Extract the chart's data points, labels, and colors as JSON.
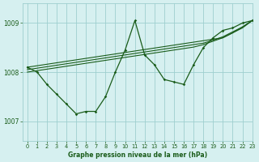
{
  "title": "Graphe pression niveau de la mer (hPa)",
  "bg_color": "#d6f0f0",
  "grid_color": "#9ecfcf",
  "line_color": "#1a5c1a",
  "xlim": [
    -0.5,
    23
  ],
  "ylim": [
    1006.6,
    1009.4
  ],
  "yticks": [
    1007,
    1008,
    1009
  ],
  "xticks": [
    0,
    1,
    2,
    3,
    4,
    5,
    6,
    7,
    8,
    9,
    10,
    11,
    12,
    13,
    14,
    15,
    16,
    17,
    18,
    19,
    20,
    21,
    22,
    23
  ],
  "jagged": [
    1008.1,
    1008.0,
    1007.75,
    1007.55,
    1007.35,
    1007.15,
    1007.2,
    1007.2,
    1007.5,
    1008.0,
    1008.45,
    1009.05,
    1008.35,
    1008.15,
    1007.85,
    1007.8,
    1007.75,
    1008.15,
    1008.5,
    1008.7,
    1008.85,
    1008.9,
    1009.0,
    1009.05
  ],
  "trend1": [
    1008.1,
    1008.13,
    1008.16,
    1008.19,
    1008.22,
    1008.25,
    1008.28,
    1008.31,
    1008.34,
    1008.37,
    1008.4,
    1008.43,
    1008.46,
    1008.49,
    1008.52,
    1008.55,
    1008.58,
    1008.61,
    1008.64,
    1008.67,
    1008.7,
    1008.8,
    1008.9,
    1009.05
  ],
  "trend2": [
    1008.05,
    1008.08,
    1008.11,
    1008.14,
    1008.17,
    1008.2,
    1008.23,
    1008.26,
    1008.29,
    1008.32,
    1008.35,
    1008.38,
    1008.41,
    1008.44,
    1008.47,
    1008.5,
    1008.53,
    1008.56,
    1008.59,
    1008.65,
    1008.72,
    1008.82,
    1008.92,
    1009.05
  ],
  "trend3": [
    1008.0,
    1008.03,
    1008.06,
    1008.09,
    1008.12,
    1008.15,
    1008.18,
    1008.21,
    1008.24,
    1008.27,
    1008.3,
    1008.33,
    1008.36,
    1008.39,
    1008.42,
    1008.45,
    1008.48,
    1008.51,
    1008.56,
    1008.63,
    1008.7,
    1008.8,
    1008.92,
    1009.05
  ]
}
